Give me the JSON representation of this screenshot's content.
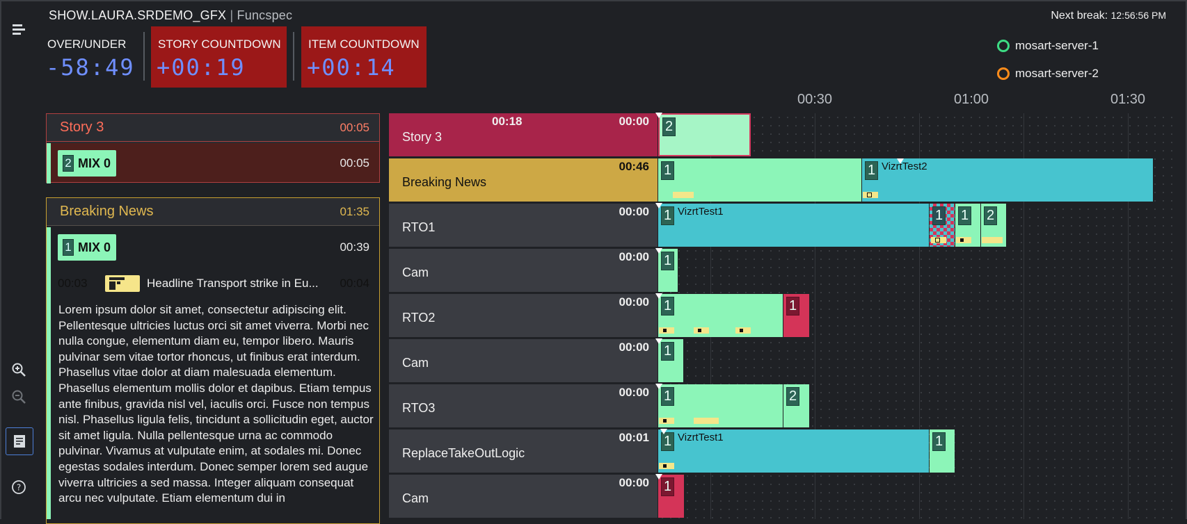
{
  "header": {
    "show_name": "SHOW.LAURA.SRDEMO_GFX",
    "separator": "|",
    "subtitle": "Funcspec",
    "next_break_label": "Next break:",
    "next_break_time": "12:56:56 PM"
  },
  "countdowns": {
    "over_under": {
      "label": "OVER/UNDER",
      "value": "-58:49"
    },
    "story": {
      "label": "STORY COUNTDOWN",
      "value": "+00:19"
    },
    "item": {
      "label": "ITEM COUNTDOWN",
      "value": "+00:14"
    }
  },
  "servers": [
    {
      "name": "mosart-server-1",
      "color": "#3ddc84"
    },
    {
      "name": "mosart-server-2",
      "color": "#ff8c1a"
    }
  ],
  "rail_icons": [
    "menu-icon",
    "zoom-in-icon",
    "zoom-out-icon",
    "script-view-icon",
    "help-icon"
  ],
  "stories": [
    {
      "title": "Story 3",
      "duration": "00:05",
      "items": [
        {
          "number": "2",
          "label": "MIX 0",
          "duration": "00:05"
        }
      ]
    },
    {
      "title": "Breaking News",
      "duration": "01:35",
      "items": [
        {
          "number": "1",
          "label": "MIX 0",
          "duration": "00:39"
        }
      ],
      "gfx": {
        "in": "00:03",
        "text": "Headline Transport strike in Eu...",
        "out": "00:04"
      },
      "script": "Lorem ipsum dolor sit amet, consectetur adipiscing elit. Pellentesque ultricies luctus orci sit amet viverra. Morbi nec nulla congue, elementum diam eu, tempor libero. Mauris pulvinar sem vitae tortor rhoncus, ut finibus erat interdum. Phasellus vitae dolor at diam malesuada elementum. Phasellus elementum mollis dolor et dapibus. Etiam tempus ante finibus, gravida nisl vel, iaculis orci. Fusce non tempus nisl. Phasellus ligula felis, tincidunt a sollicitudin eget, auctor sit amet ligula. Nulla pellentesque urna ac commodo pulvinar. Vivamus at vulputate enim, at sodales mi. Donec egestas sodales interdum. Donec semper lorem sed augue viverra ultricies a sed massa. Integer aliquam consequat arcu nec vulputate. Etiam elementum dui in"
    }
  ],
  "timeline": {
    "ticks": [
      "00:30",
      "01:00",
      "01:30"
    ],
    "rows": [
      {
        "name": "Story 3",
        "time_mid": "00:18",
        "time": "00:00"
      },
      {
        "name": "Breaking News",
        "time": "00:46"
      },
      {
        "name": "RTO1",
        "time": "00:00"
      },
      {
        "name": "Cam",
        "time": "00:00"
      },
      {
        "name": "RTO2",
        "time": "00:00"
      },
      {
        "name": "Cam",
        "time": "00:00"
      },
      {
        "name": "RTO3",
        "time": "00:00"
      },
      {
        "name": "ReplaceTakeOutLogic",
        "time": "00:01"
      },
      {
        "name": "Cam",
        "time": "00:00"
      }
    ],
    "segments": {
      "r0": [
        "2"
      ],
      "r1": [
        "1",
        "1",
        "VizrtTest2"
      ],
      "r2": [
        "1",
        "VizrtTest1",
        "1",
        "1",
        "2"
      ],
      "r3": [
        "1"
      ],
      "r4": [
        "1",
        "1"
      ],
      "r5": [
        "1"
      ],
      "r6": [
        "1",
        "2"
      ],
      "r7": [
        "1",
        "VizrtTest1",
        "1"
      ],
      "r8": [
        "1"
      ]
    }
  }
}
